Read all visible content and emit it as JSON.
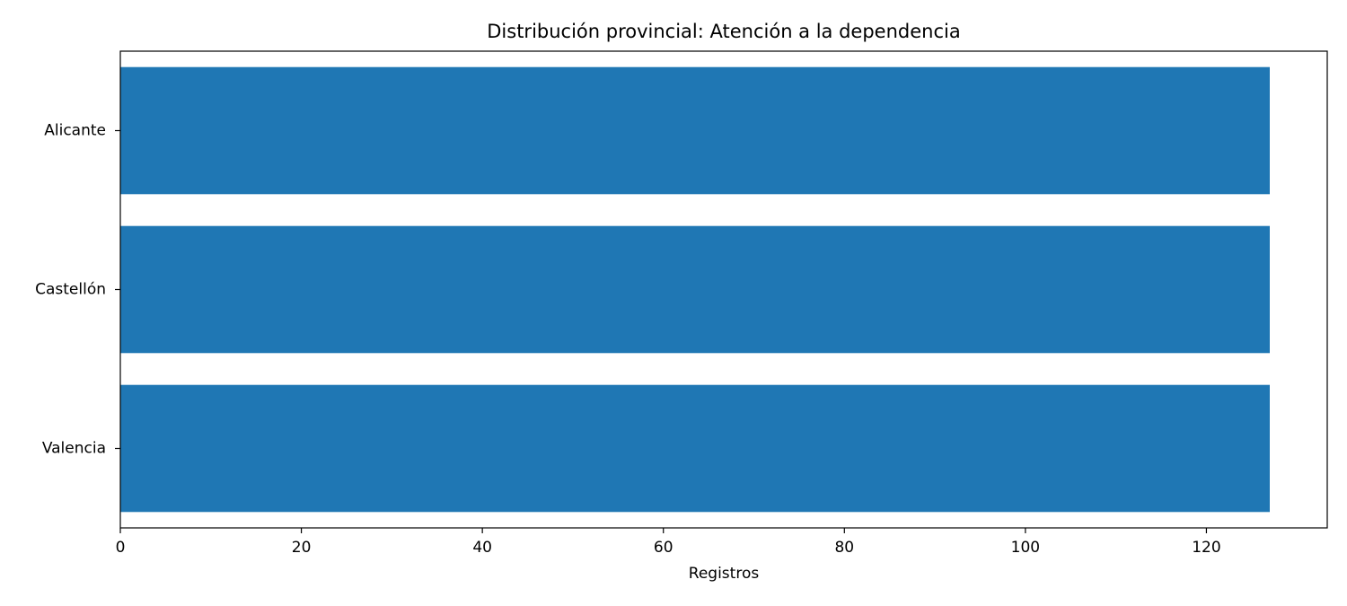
{
  "chart_data": {
    "type": "barh",
    "title": "Distribución provincial: Atención a la dependencia",
    "xlabel": "Registros",
    "categories": [
      "Alicante",
      "Castellón",
      "Valencia"
    ],
    "values": [
      127,
      127,
      127
    ],
    "color": "#1f77b4",
    "xlim": [
      0,
      133.35
    ],
    "xticks": [
      0,
      20,
      40,
      60,
      80,
      100,
      120
    ],
    "grid": false
  }
}
